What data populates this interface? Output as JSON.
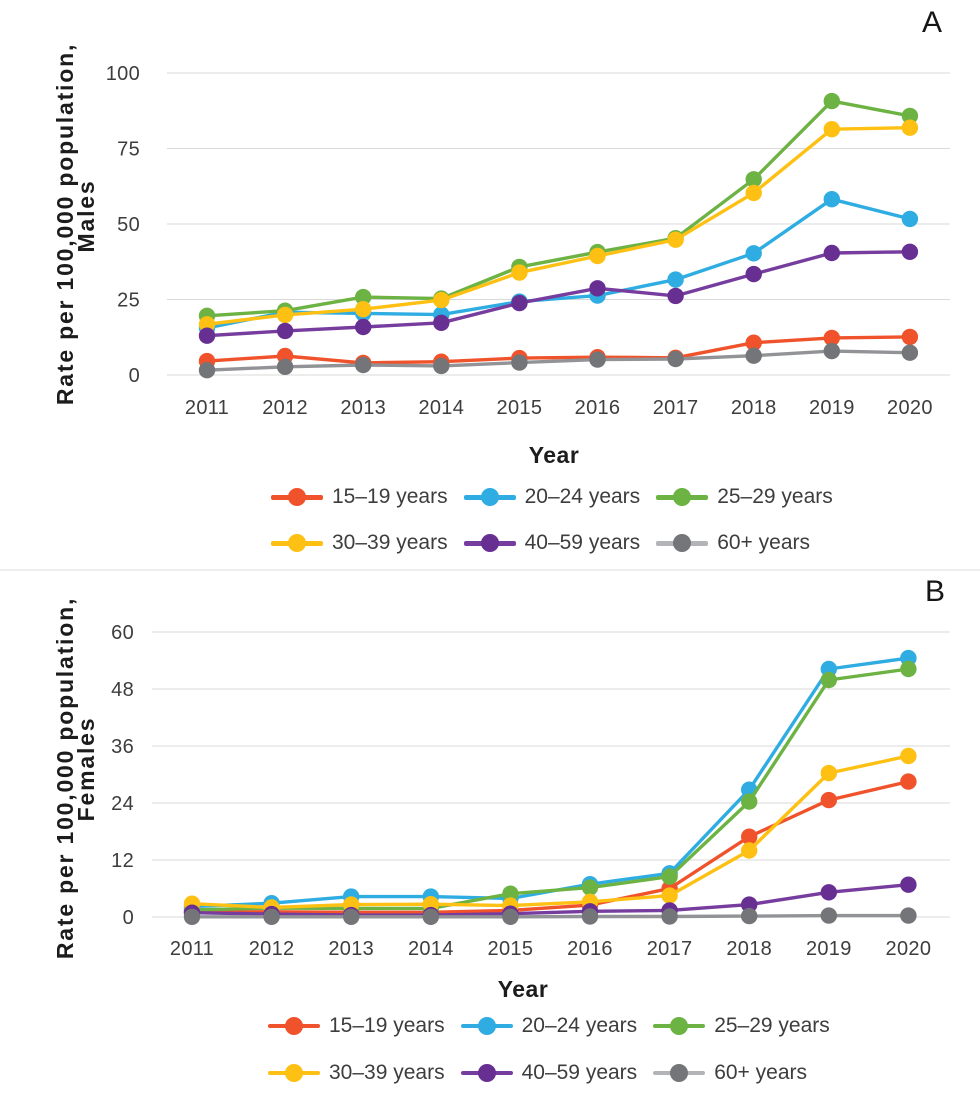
{
  "chart_data": [
    {
      "type": "line",
      "letter": "A",
      "xlabel": "Year",
      "ylabel_line1": "Rate per 100,000 population,",
      "ylabel_line2": "Males",
      "ylim": [
        0,
        100
      ],
      "yticks": [
        0,
        25,
        50,
        75,
        100
      ],
      "x": [
        2011,
        2012,
        2013,
        2014,
        2015,
        2016,
        2017,
        2018,
        2019,
        2020
      ],
      "grid": "horizontal",
      "legend_position": "bottom",
      "series": [
        {
          "name": "15–19 years",
          "line_color": "#F0532B",
          "marker_color": "#F0532B",
          "values": [
            4.6,
            6.3,
            4.0,
            4.4,
            5.6,
            5.9,
            5.7,
            10.7,
            12.3,
            12.6
          ]
        },
        {
          "name": "20–24 years",
          "line_color": "#2FADE2",
          "marker_color": "#2FADE2",
          "values": [
            15.6,
            20.8,
            20.4,
            20.0,
            24.3,
            26.3,
            31.6,
            40.3,
            58.2,
            51.7
          ]
        },
        {
          "name": "25–29 years",
          "line_color": "#6DB344",
          "marker_color": "#6DB344",
          "values": [
            19.6,
            21.3,
            25.8,
            25.3,
            35.8,
            40.7,
            45.3,
            64.8,
            90.7,
            85.8
          ]
        },
        {
          "name": "30–39 years",
          "line_color": "#FDC013",
          "marker_color": "#FDC013",
          "values": [
            16.8,
            19.9,
            21.8,
            24.8,
            33.9,
            39.4,
            44.8,
            60.3,
            81.4,
            81.9
          ]
        },
        {
          "name": "40–59 years",
          "line_color": "#763D9E",
          "marker_color": "#682F93",
          "values": [
            13.0,
            14.6,
            15.9,
            17.3,
            23.8,
            28.7,
            26.2,
            33.4,
            40.4,
            40.8
          ]
        },
        {
          "name": "60+ years",
          "line_color": "#919396",
          "marker_color": "#747578",
          "legend_line_color": "#B2B4B7",
          "values": [
            1.6,
            2.7,
            3.3,
            3.0,
            4.1,
            5.1,
            5.3,
            6.4,
            7.9,
            7.4
          ]
        }
      ]
    },
    {
      "type": "line",
      "letter": "B",
      "xlabel": "Year",
      "ylabel_line1": "Rate per 100,000 population,",
      "ylabel_line2": "Females",
      "ylim": [
        0,
        60
      ],
      "yticks": [
        0,
        12,
        24,
        36,
        48,
        60
      ],
      "x": [
        2011,
        2012,
        2013,
        2014,
        2015,
        2016,
        2017,
        2018,
        2019,
        2020
      ],
      "grid": "horizontal",
      "legend_position": "bottom",
      "series": [
        {
          "name": "15–19 years",
          "line_color": "#F0532B",
          "marker_color": "#F0532B",
          "values": [
            1.1,
            1.1,
            1.0,
            1.0,
            1.4,
            2.5,
            6.0,
            16.9,
            24.6,
            28.5
          ]
        },
        {
          "name": "20–24 years",
          "line_color": "#2FADE2",
          "marker_color": "#2FADE2",
          "values": [
            2.2,
            2.9,
            4.3,
            4.3,
            3.9,
            6.9,
            9.2,
            26.8,
            52.2,
            54.5
          ]
        },
        {
          "name": "25–29 years",
          "line_color": "#6DB344",
          "marker_color": "#6DB344",
          "values": [
            1.5,
            1.9,
            1.8,
            1.8,
            4.9,
            6.2,
            8.5,
            24.3,
            49.9,
            52.2
          ]
        },
        {
          "name": "30–39 years",
          "line_color": "#FDC013",
          "marker_color": "#FDC013",
          "values": [
            2.8,
            2.0,
            2.6,
            2.7,
            2.4,
            3.2,
            4.5,
            14.0,
            30.3,
            33.9
          ]
        },
        {
          "name": "40–59 years",
          "line_color": "#763D9E",
          "marker_color": "#682F93",
          "values": [
            0.9,
            0.6,
            0.4,
            0.4,
            0.7,
            1.2,
            1.4,
            2.6,
            5.2,
            6.8
          ]
        },
        {
          "name": "60+ years",
          "line_color": "#919396",
          "marker_color": "#747578",
          "legend_line_color": "#B2B4B7",
          "values": [
            0.05,
            0.05,
            0.05,
            0.05,
            0.05,
            0.1,
            0.1,
            0.2,
            0.3,
            0.3
          ]
        }
      ]
    }
  ]
}
